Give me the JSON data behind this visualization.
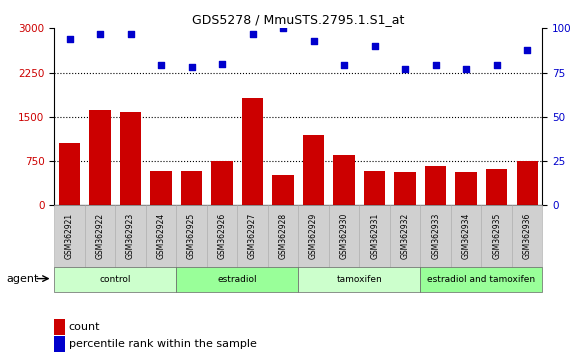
{
  "title": "GDS5278 / MmuSTS.2795.1.S1_at",
  "samples": [
    "GSM362921",
    "GSM362922",
    "GSM362923",
    "GSM362924",
    "GSM362925",
    "GSM362926",
    "GSM362927",
    "GSM362928",
    "GSM362929",
    "GSM362930",
    "GSM362931",
    "GSM362932",
    "GSM362933",
    "GSM362934",
    "GSM362935",
    "GSM362936"
  ],
  "counts": [
    1050,
    1620,
    1580,
    590,
    590,
    750,
    1820,
    520,
    1200,
    860,
    590,
    570,
    660,
    560,
    620,
    750
  ],
  "percentiles": [
    94,
    97,
    97,
    79,
    78,
    80,
    97,
    100,
    93,
    79,
    90,
    77,
    79,
    77,
    79,
    88
  ],
  "groups": [
    {
      "label": "control",
      "start": 0,
      "end": 4,
      "color": "#ccffcc"
    },
    {
      "label": "estradiol",
      "start": 4,
      "end": 8,
      "color": "#99ff99"
    },
    {
      "label": "tamoxifen",
      "start": 8,
      "end": 12,
      "color": "#ccffcc"
    },
    {
      "label": "estradiol and tamoxifen",
      "start": 12,
      "end": 16,
      "color": "#99ff99"
    }
  ],
  "ylim_left": [
    0,
    3000
  ],
  "ylim_right": [
    0,
    100
  ],
  "yticks_left": [
    0,
    750,
    1500,
    2250,
    3000
  ],
  "yticks_right": [
    0,
    25,
    50,
    75,
    100
  ],
  "bar_color": "#cc0000",
  "dot_color": "#0000cc",
  "plot_bg": "#ffffff",
  "agent_label": "agent",
  "legend_count_label": "count",
  "legend_pct_label": "percentile rank within the sample"
}
